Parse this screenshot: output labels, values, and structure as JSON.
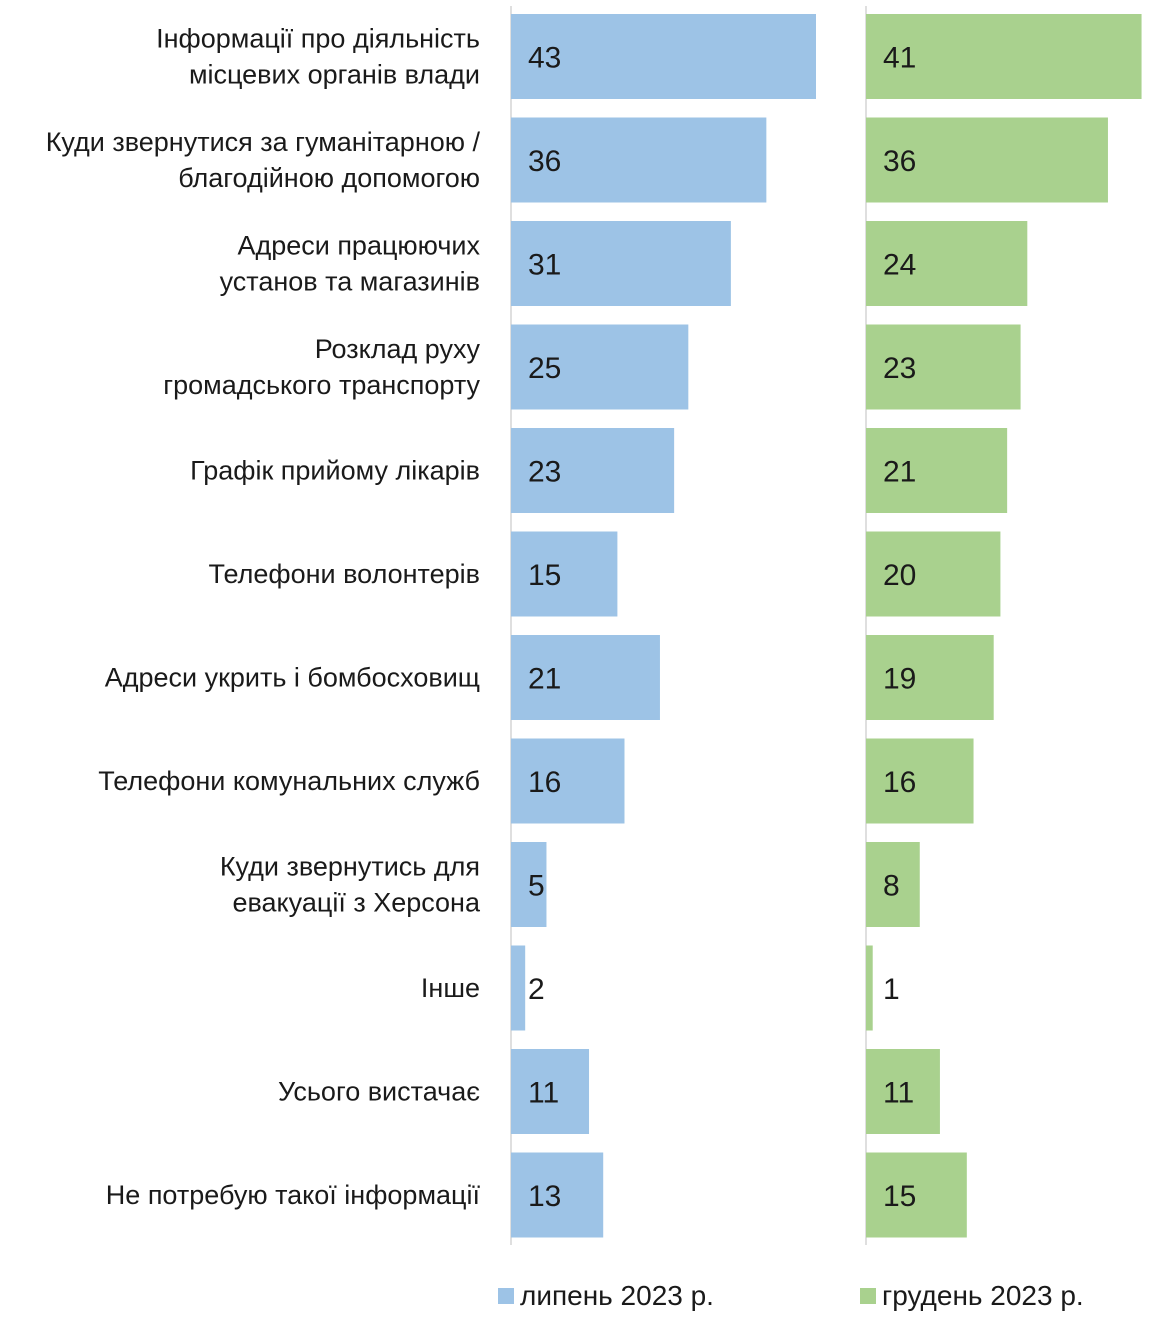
{
  "chart_data": {
    "type": "bar",
    "orientation": "horizontal",
    "categories": [
      [
        "Інформації про діяльність",
        "місцевих органів влади"
      ],
      [
        "Куди звернутися за гуманітарною /",
        "благодійною допомогою"
      ],
      [
        "Адреси працюючих",
        "установ та магазинів"
      ],
      [
        "Розклад руху",
        "громадського транспорту"
      ],
      [
        "Графік прийому лікарів"
      ],
      [
        "Телефони волонтерів"
      ],
      [
        "Адреси укрить і бомбосховищ"
      ],
      [
        "Телефони комунальних служб"
      ],
      [
        "Куди звернутись для",
        "евакуації з Херсона"
      ],
      [
        "Інше"
      ],
      [
        "Усього вистачає"
      ],
      [
        "Не потребую такої інформації"
      ]
    ],
    "series": [
      {
        "name": "липень 2023 р.",
        "color": "#9dc3e6",
        "values": [
          43,
          36,
          31,
          25,
          23,
          15,
          21,
          16,
          5,
          2,
          11,
          13
        ]
      },
      {
        "name": "грудень 2023 р.",
        "color": "#a9d18e",
        "values": [
          41,
          36,
          24,
          23,
          21,
          20,
          19,
          16,
          8,
          1,
          11,
          15
        ]
      }
    ],
    "xlim": [
      0,
      43
    ],
    "axis_line_color": "#bfbfbf",
    "legend_position": "bottom"
  }
}
